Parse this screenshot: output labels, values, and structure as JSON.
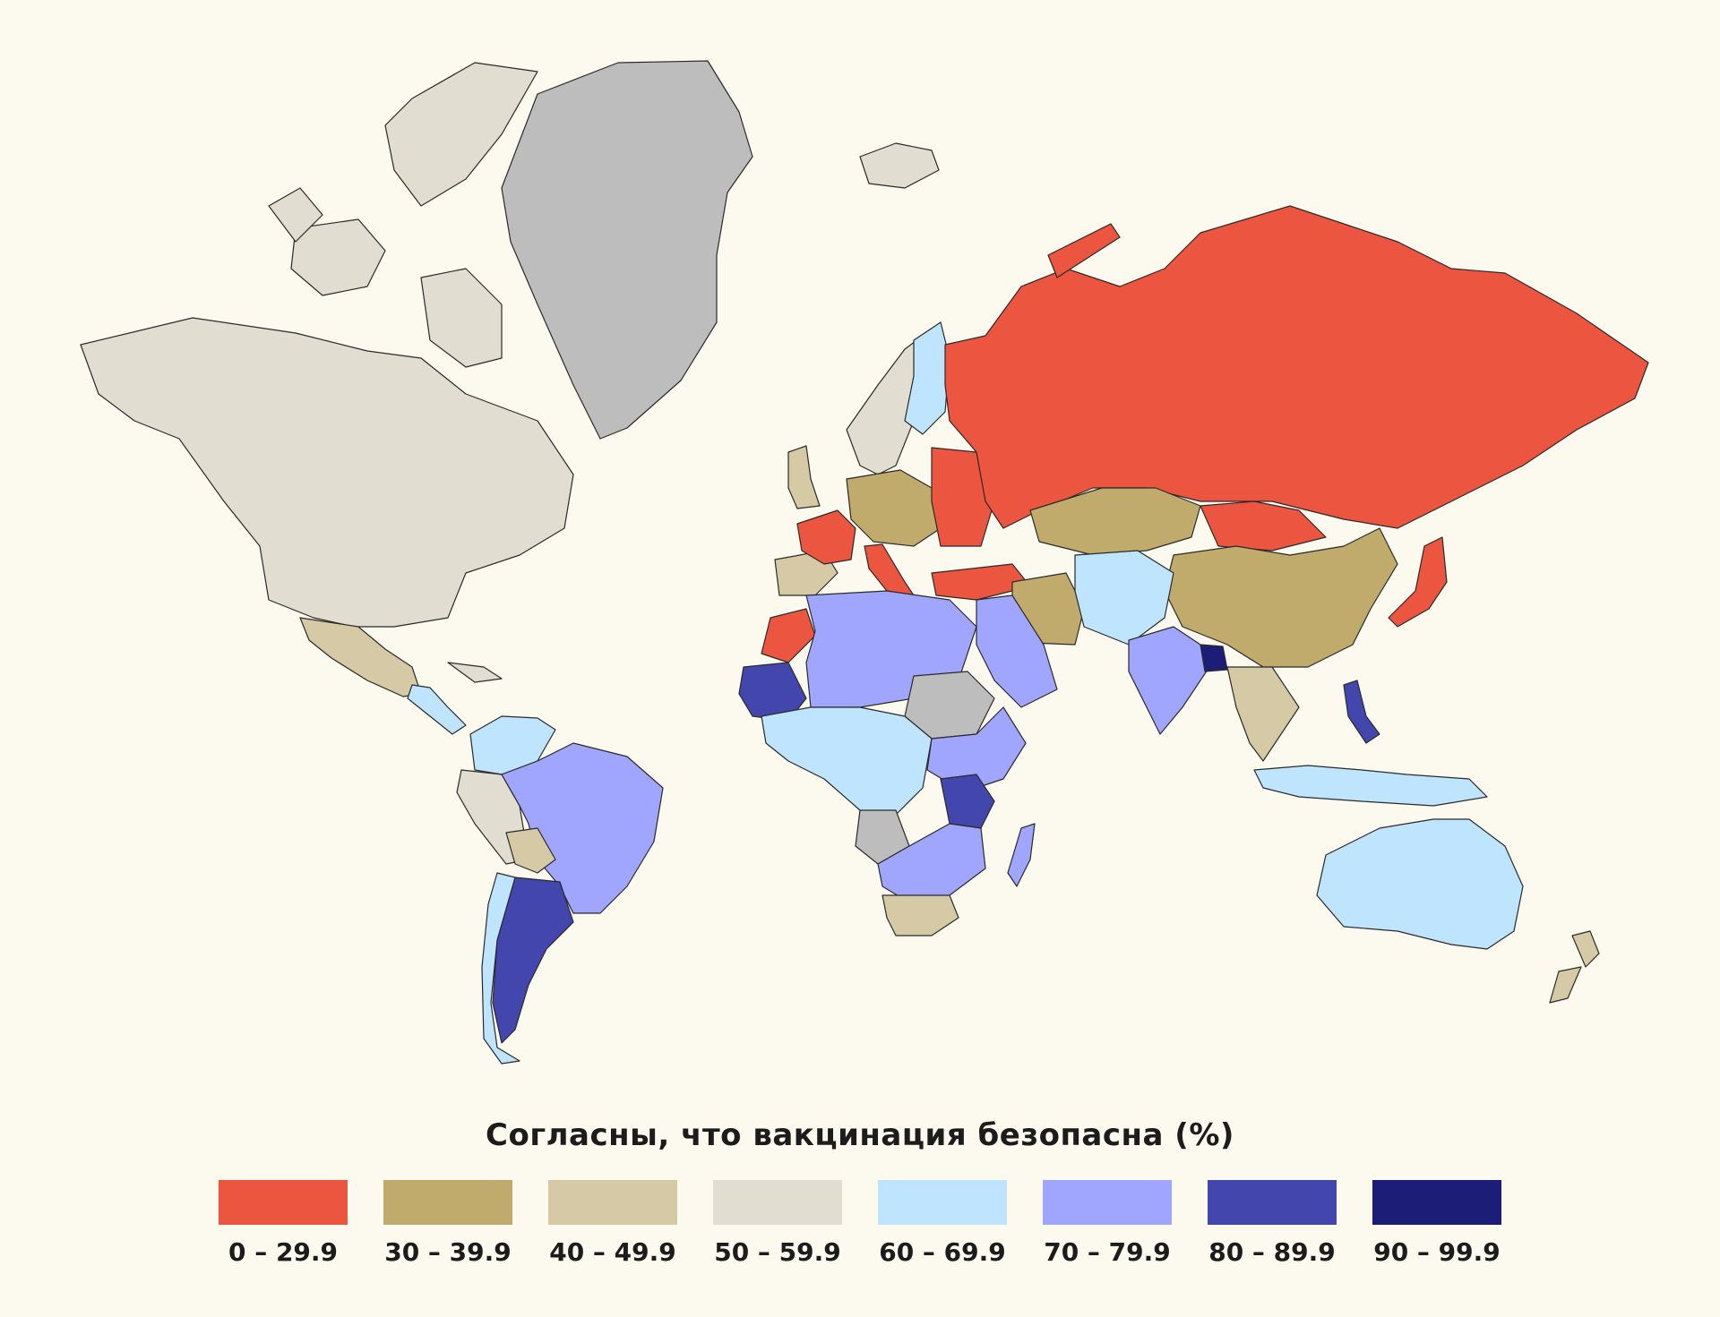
{
  "legend": {
    "title": "Согласны, что вакцинация безопасна (%)",
    "bins": [
      {
        "label": "0 – 29.9",
        "color": "#ec553f"
      },
      {
        "label": "30 – 39.9",
        "color": "#c1ab6c"
      },
      {
        "label": "40 – 49.9",
        "color": "#d6c9a5"
      },
      {
        "label": "50 – 59.9",
        "color": "#e1ddd1"
      },
      {
        "label": "60 – 69.9",
        "color": "#bfe4fd"
      },
      {
        "label": "70 – 79.9",
        "color": "#a0a5fd"
      },
      {
        "label": "80 – 89.9",
        "color": "#4346ac"
      },
      {
        "label": "90 – 99.9",
        "color": "#1b1d77"
      }
    ],
    "no_data_color": "#bdbdbd"
  },
  "map": {
    "regions": [
      {
        "name": "north-america",
        "bin": 3
      },
      {
        "name": "greenland",
        "bin": null
      },
      {
        "name": "iceland",
        "bin": 3
      },
      {
        "name": "mexico",
        "bin": 2
      },
      {
        "name": "central-america",
        "bin": 4
      },
      {
        "name": "caribbean",
        "bin": 3
      },
      {
        "name": "northern-south-america",
        "bin": 4
      },
      {
        "name": "brazil",
        "bin": 5
      },
      {
        "name": "andes",
        "bin": 3
      },
      {
        "name": "bolivia",
        "bin": 2
      },
      {
        "name": "argentina",
        "bin": 6
      },
      {
        "name": "chile",
        "bin": 4
      },
      {
        "name": "scandinavia",
        "bin": 3
      },
      {
        "name": "finland",
        "bin": 4
      },
      {
        "name": "united-kingdom",
        "bin": 2
      },
      {
        "name": "france",
        "bin": 0
      },
      {
        "name": "iberia",
        "bin": 2
      },
      {
        "name": "central-europe",
        "bin": 1
      },
      {
        "name": "eastern-europe",
        "bin": 0
      },
      {
        "name": "italy",
        "bin": 0
      },
      {
        "name": "turkey",
        "bin": 0
      },
      {
        "name": "russia",
        "bin": 0
      },
      {
        "name": "kazakhstan",
        "bin": 1
      },
      {
        "name": "mongolia",
        "bin": 0
      },
      {
        "name": "china",
        "bin": 1
      },
      {
        "name": "iran",
        "bin": 1
      },
      {
        "name": "central-asia",
        "bin": 4
      },
      {
        "name": "arabia",
        "bin": 5
      },
      {
        "name": "india",
        "bin": 5
      },
      {
        "name": "bangladesh",
        "bin": 7
      },
      {
        "name": "southeast-asia",
        "bin": 2
      },
      {
        "name": "japan",
        "bin": 0
      },
      {
        "name": "philippines",
        "bin": 6
      },
      {
        "name": "indonesia",
        "bin": 4
      },
      {
        "name": "australia",
        "bin": 4
      },
      {
        "name": "new-zealand",
        "bin": 2
      },
      {
        "name": "morocco",
        "bin": 0
      },
      {
        "name": "mauritania",
        "bin": 6
      },
      {
        "name": "north-africa",
        "bin": 5
      },
      {
        "name": "sahel-east",
        "bin": null
      },
      {
        "name": "central-africa",
        "bin": 4
      },
      {
        "name": "east-africa",
        "bin": 5
      },
      {
        "name": "tanzania",
        "bin": 6
      },
      {
        "name": "angola",
        "bin": null
      },
      {
        "name": "southern-africa",
        "bin": 5
      },
      {
        "name": "south-africa",
        "bin": 2
      },
      {
        "name": "madagascar",
        "bin": 5
      }
    ]
  }
}
